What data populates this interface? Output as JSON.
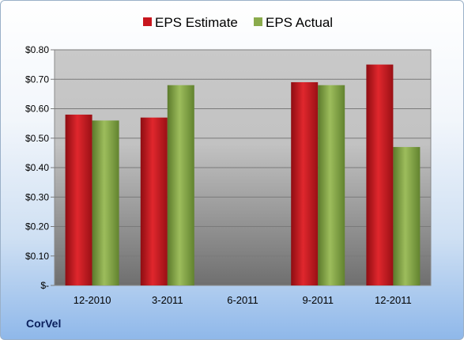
{
  "brand": "CorVel",
  "chart_data": {
    "type": "bar",
    "categories": [
      "12-2010",
      "3-2011",
      "6-2011",
      "9-2011",
      "12-2011"
    ],
    "series": [
      {
        "name": "EPS Estimate",
        "values": [
          0.58,
          0.57,
          null,
          0.69,
          0.75
        ],
        "color": "#c8161e"
      },
      {
        "name": "EPS Actual",
        "values": [
          0.56,
          0.68,
          null,
          0.68,
          0.47
        ],
        "color": "#8aab4c"
      }
    ],
    "y_ticks": [
      "$-",
      "$0.10",
      "$0.20",
      "$0.30",
      "$0.40",
      "$0.50",
      "$0.60",
      "$0.70",
      "$0.80"
    ],
    "ylim": [
      0,
      0.8
    ],
    "grid": true,
    "legend_position": "top"
  }
}
